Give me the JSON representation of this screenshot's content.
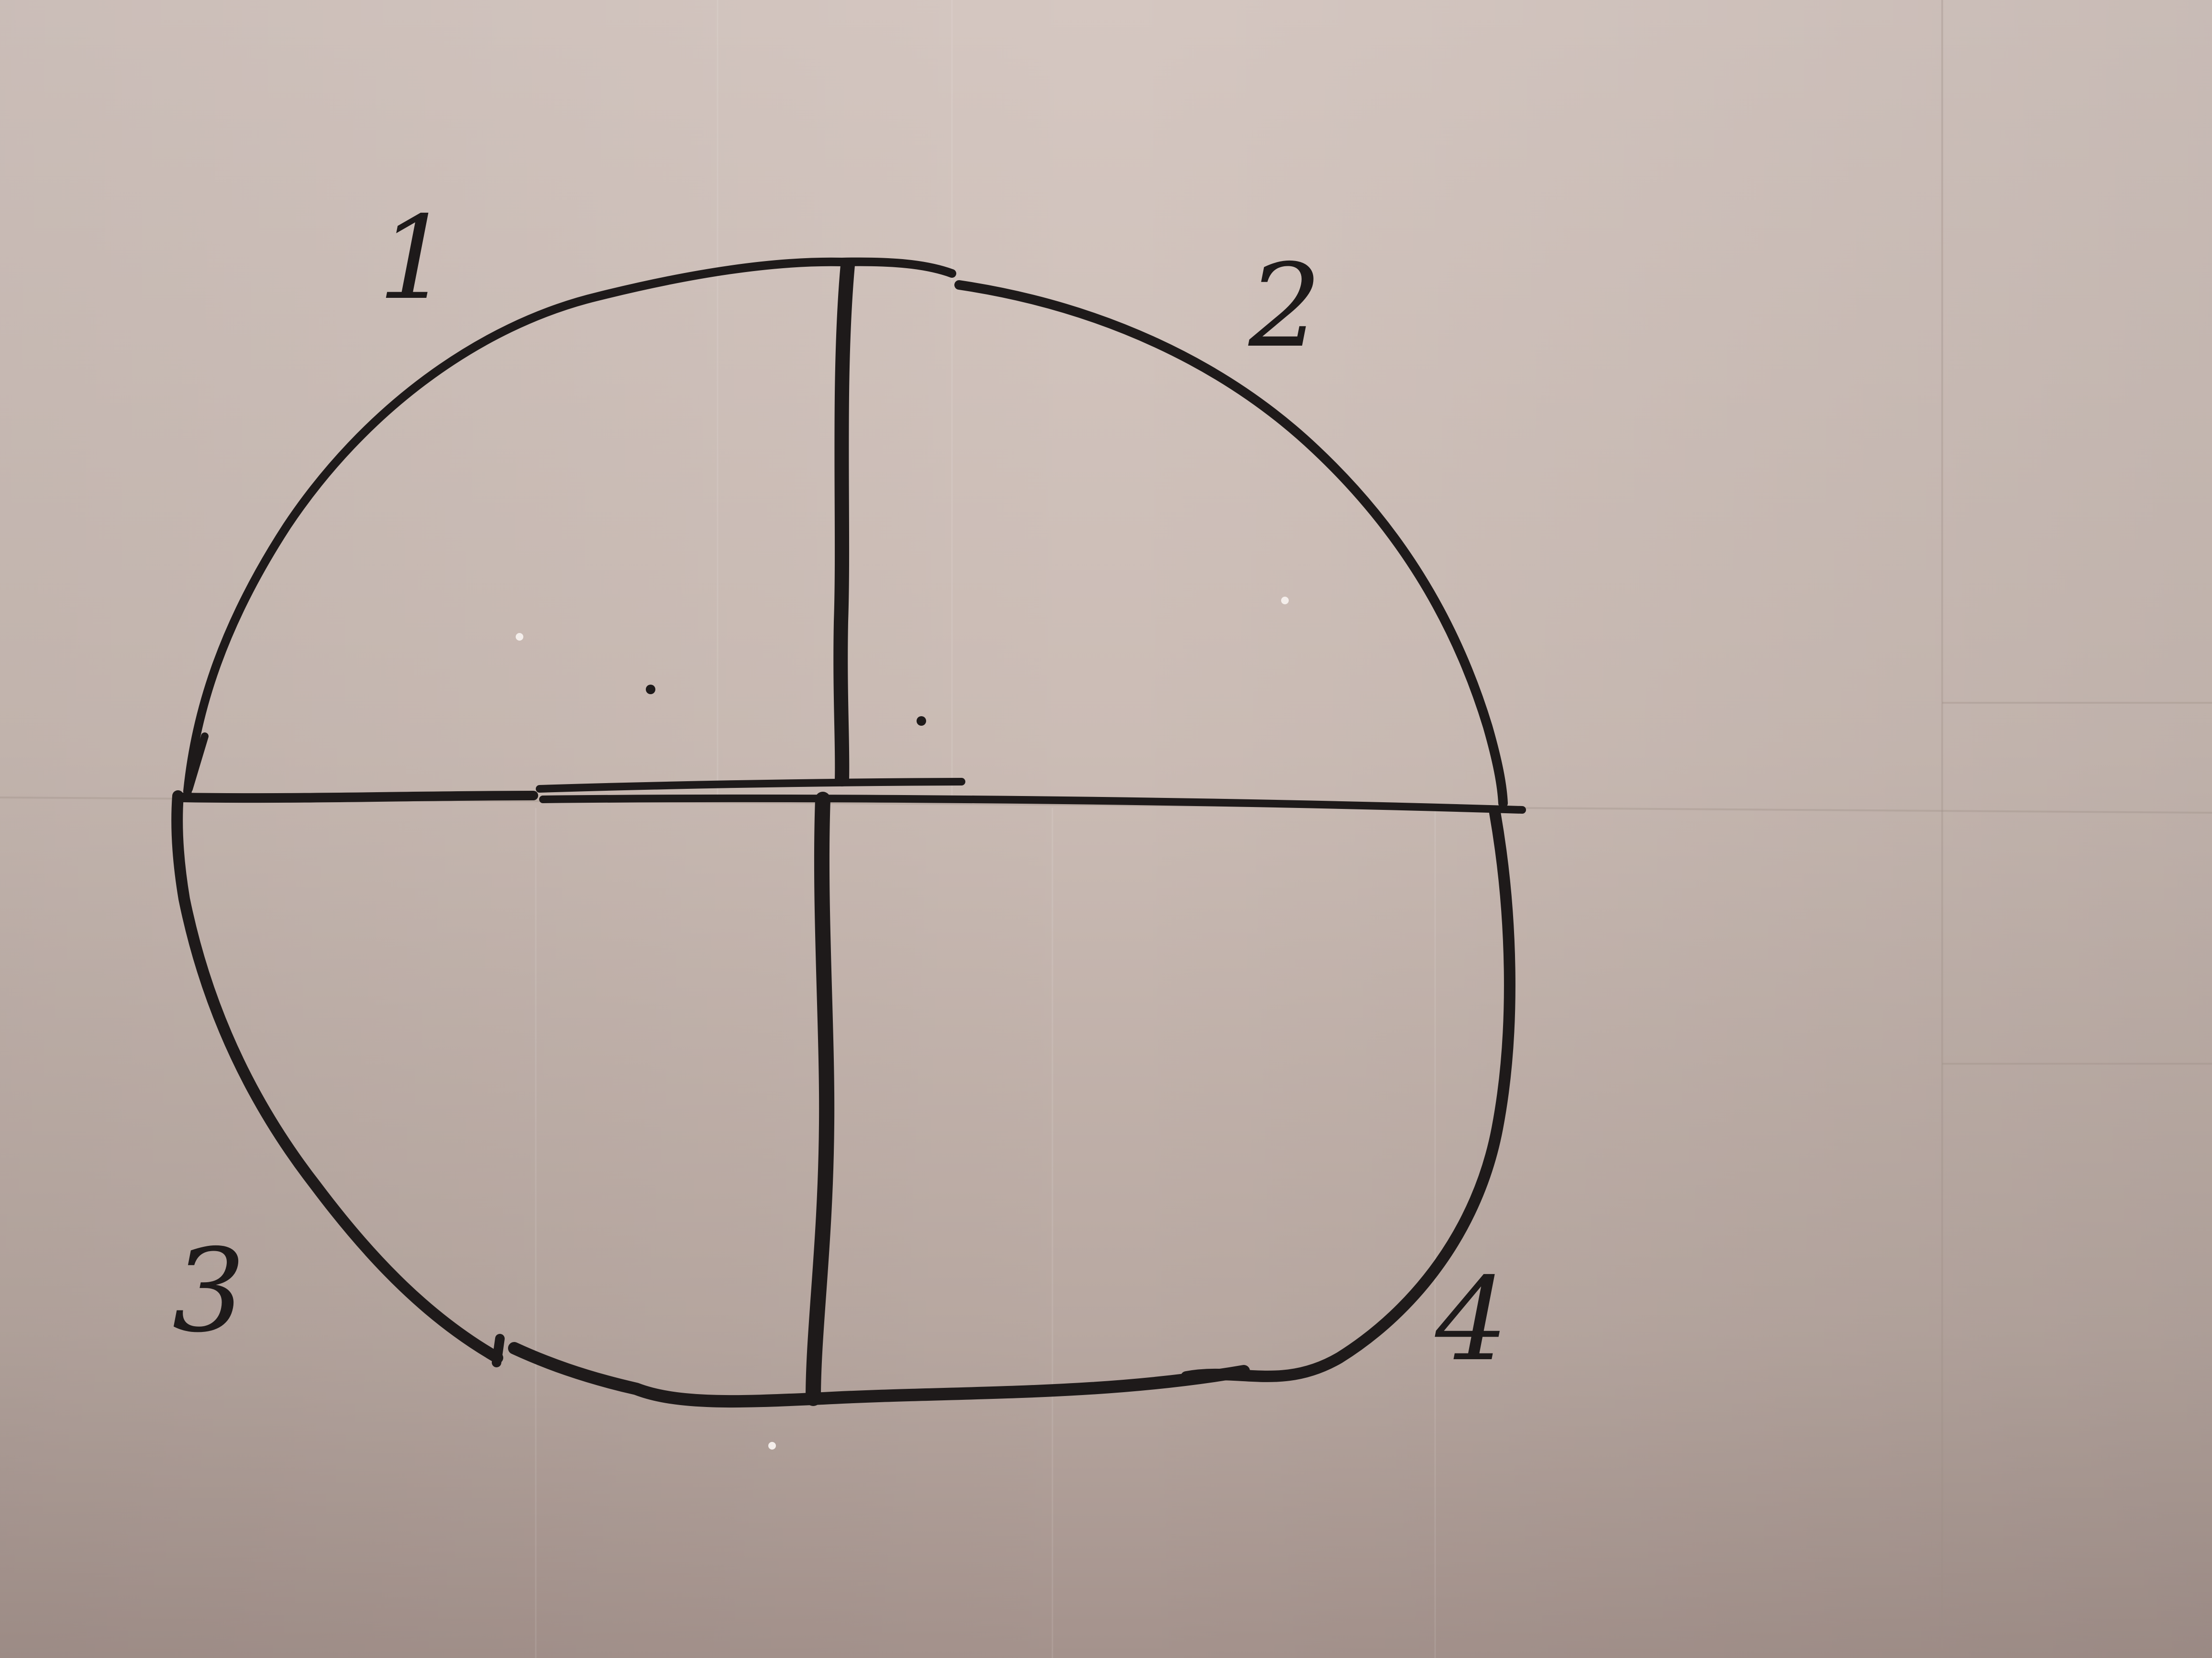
{
  "photo": {
    "quadrant_labels": [
      "1",
      "2",
      "3",
      "4"
    ],
    "colors": {
      "paper_light": "#d7c9c3",
      "paper_mid": "#c9b9b2",
      "paper_dark": "#a8958f",
      "ink": "#1e1a1a"
    }
  }
}
